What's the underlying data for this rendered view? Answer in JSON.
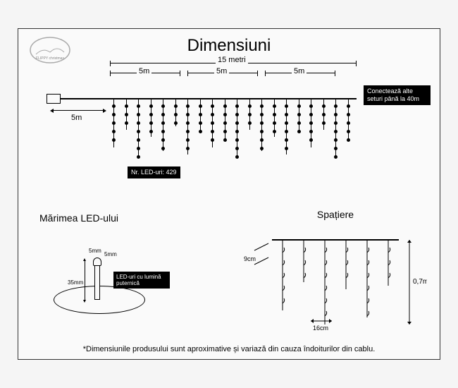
{
  "title": "Dimensiuni",
  "logo_text": "FLIPPY christmas",
  "main_length": "15 metri",
  "segments": [
    "5m",
    "5m",
    "5m"
  ],
  "cable_length": "5m",
  "connector_note": "Conectează alte seturi până la 40m",
  "led_count": "Nr. LED-uri: 429",
  "led_size_title": "Mărimea LED-ului",
  "led_width": "5mm",
  "led_depth": "5mm",
  "led_height": "35mm",
  "led_height_top": "5mm",
  "led_desc": "LED-uri cu lumină puternică",
  "spacing_title": "Spațiere",
  "spacing_h": "16cm",
  "spacing_v": "9cm",
  "drop_height": "0,7m",
  "footnote": "*Dimensiunile produsului sunt aproximative și variază din cauza îndoiturilor din cablu.",
  "colors": {
    "bg": "#fafafa",
    "line": "#000000",
    "box_bg": "#000000",
    "box_fg": "#ffffff"
  },
  "strand_heights": [
    70,
    45,
    85,
    55,
    75,
    40,
    80,
    50,
    70,
    60,
    85,
    45,
    75,
    55,
    80,
    50,
    70,
    45,
    85,
    60
  ]
}
